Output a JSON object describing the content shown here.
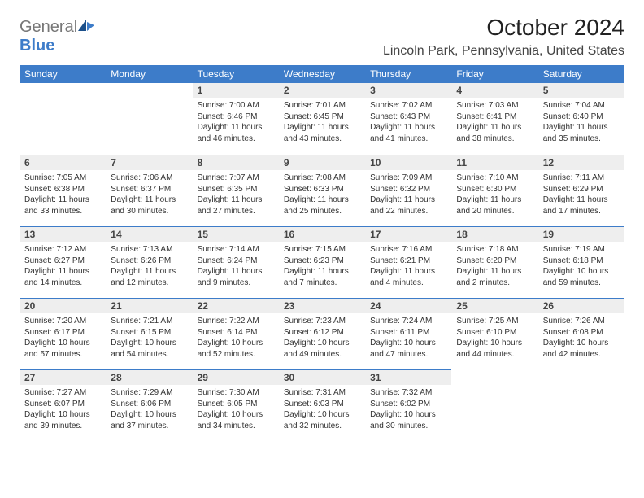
{
  "brand": {
    "general": "General",
    "blue": "Blue"
  },
  "title": "October 2024",
  "location": "Lincoln Park, Pennsylvania, United States",
  "colors": {
    "header_bg": "#3d7cc9",
    "daynum_bg": "#eeeeee",
    "rule": "#3d7cc9"
  },
  "daynames": [
    "Sunday",
    "Monday",
    "Tuesday",
    "Wednesday",
    "Thursday",
    "Friday",
    "Saturday"
  ],
  "weeks": [
    [
      null,
      null,
      {
        "n": "1",
        "sr": "Sunrise: 7:00 AM",
        "ss": "Sunset: 6:46 PM",
        "d1": "Daylight: 11 hours",
        "d2": "and 46 minutes."
      },
      {
        "n": "2",
        "sr": "Sunrise: 7:01 AM",
        "ss": "Sunset: 6:45 PM",
        "d1": "Daylight: 11 hours",
        "d2": "and 43 minutes."
      },
      {
        "n": "3",
        "sr": "Sunrise: 7:02 AM",
        "ss": "Sunset: 6:43 PM",
        "d1": "Daylight: 11 hours",
        "d2": "and 41 minutes."
      },
      {
        "n": "4",
        "sr": "Sunrise: 7:03 AM",
        "ss": "Sunset: 6:41 PM",
        "d1": "Daylight: 11 hours",
        "d2": "and 38 minutes."
      },
      {
        "n": "5",
        "sr": "Sunrise: 7:04 AM",
        "ss": "Sunset: 6:40 PM",
        "d1": "Daylight: 11 hours",
        "d2": "and 35 minutes."
      }
    ],
    [
      {
        "n": "6",
        "sr": "Sunrise: 7:05 AM",
        "ss": "Sunset: 6:38 PM",
        "d1": "Daylight: 11 hours",
        "d2": "and 33 minutes."
      },
      {
        "n": "7",
        "sr": "Sunrise: 7:06 AM",
        "ss": "Sunset: 6:37 PM",
        "d1": "Daylight: 11 hours",
        "d2": "and 30 minutes."
      },
      {
        "n": "8",
        "sr": "Sunrise: 7:07 AM",
        "ss": "Sunset: 6:35 PM",
        "d1": "Daylight: 11 hours",
        "d2": "and 27 minutes."
      },
      {
        "n": "9",
        "sr": "Sunrise: 7:08 AM",
        "ss": "Sunset: 6:33 PM",
        "d1": "Daylight: 11 hours",
        "d2": "and 25 minutes."
      },
      {
        "n": "10",
        "sr": "Sunrise: 7:09 AM",
        "ss": "Sunset: 6:32 PM",
        "d1": "Daylight: 11 hours",
        "d2": "and 22 minutes."
      },
      {
        "n": "11",
        "sr": "Sunrise: 7:10 AM",
        "ss": "Sunset: 6:30 PM",
        "d1": "Daylight: 11 hours",
        "d2": "and 20 minutes."
      },
      {
        "n": "12",
        "sr": "Sunrise: 7:11 AM",
        "ss": "Sunset: 6:29 PM",
        "d1": "Daylight: 11 hours",
        "d2": "and 17 minutes."
      }
    ],
    [
      {
        "n": "13",
        "sr": "Sunrise: 7:12 AM",
        "ss": "Sunset: 6:27 PM",
        "d1": "Daylight: 11 hours",
        "d2": "and 14 minutes."
      },
      {
        "n": "14",
        "sr": "Sunrise: 7:13 AM",
        "ss": "Sunset: 6:26 PM",
        "d1": "Daylight: 11 hours",
        "d2": "and 12 minutes."
      },
      {
        "n": "15",
        "sr": "Sunrise: 7:14 AM",
        "ss": "Sunset: 6:24 PM",
        "d1": "Daylight: 11 hours",
        "d2": "and 9 minutes."
      },
      {
        "n": "16",
        "sr": "Sunrise: 7:15 AM",
        "ss": "Sunset: 6:23 PM",
        "d1": "Daylight: 11 hours",
        "d2": "and 7 minutes."
      },
      {
        "n": "17",
        "sr": "Sunrise: 7:16 AM",
        "ss": "Sunset: 6:21 PM",
        "d1": "Daylight: 11 hours",
        "d2": "and 4 minutes."
      },
      {
        "n": "18",
        "sr": "Sunrise: 7:18 AM",
        "ss": "Sunset: 6:20 PM",
        "d1": "Daylight: 11 hours",
        "d2": "and 2 minutes."
      },
      {
        "n": "19",
        "sr": "Sunrise: 7:19 AM",
        "ss": "Sunset: 6:18 PM",
        "d1": "Daylight: 10 hours",
        "d2": "and 59 minutes."
      }
    ],
    [
      {
        "n": "20",
        "sr": "Sunrise: 7:20 AM",
        "ss": "Sunset: 6:17 PM",
        "d1": "Daylight: 10 hours",
        "d2": "and 57 minutes."
      },
      {
        "n": "21",
        "sr": "Sunrise: 7:21 AM",
        "ss": "Sunset: 6:15 PM",
        "d1": "Daylight: 10 hours",
        "d2": "and 54 minutes."
      },
      {
        "n": "22",
        "sr": "Sunrise: 7:22 AM",
        "ss": "Sunset: 6:14 PM",
        "d1": "Daylight: 10 hours",
        "d2": "and 52 minutes."
      },
      {
        "n": "23",
        "sr": "Sunrise: 7:23 AM",
        "ss": "Sunset: 6:12 PM",
        "d1": "Daylight: 10 hours",
        "d2": "and 49 minutes."
      },
      {
        "n": "24",
        "sr": "Sunrise: 7:24 AM",
        "ss": "Sunset: 6:11 PM",
        "d1": "Daylight: 10 hours",
        "d2": "and 47 minutes."
      },
      {
        "n": "25",
        "sr": "Sunrise: 7:25 AM",
        "ss": "Sunset: 6:10 PM",
        "d1": "Daylight: 10 hours",
        "d2": "and 44 minutes."
      },
      {
        "n": "26",
        "sr": "Sunrise: 7:26 AM",
        "ss": "Sunset: 6:08 PM",
        "d1": "Daylight: 10 hours",
        "d2": "and 42 minutes."
      }
    ],
    [
      {
        "n": "27",
        "sr": "Sunrise: 7:27 AM",
        "ss": "Sunset: 6:07 PM",
        "d1": "Daylight: 10 hours",
        "d2": "and 39 minutes."
      },
      {
        "n": "28",
        "sr": "Sunrise: 7:29 AM",
        "ss": "Sunset: 6:06 PM",
        "d1": "Daylight: 10 hours",
        "d2": "and 37 minutes."
      },
      {
        "n": "29",
        "sr": "Sunrise: 7:30 AM",
        "ss": "Sunset: 6:05 PM",
        "d1": "Daylight: 10 hours",
        "d2": "and 34 minutes."
      },
      {
        "n": "30",
        "sr": "Sunrise: 7:31 AM",
        "ss": "Sunset: 6:03 PM",
        "d1": "Daylight: 10 hours",
        "d2": "and 32 minutes."
      },
      {
        "n": "31",
        "sr": "Sunrise: 7:32 AM",
        "ss": "Sunset: 6:02 PM",
        "d1": "Daylight: 10 hours",
        "d2": "and 30 minutes."
      },
      null,
      null
    ]
  ]
}
